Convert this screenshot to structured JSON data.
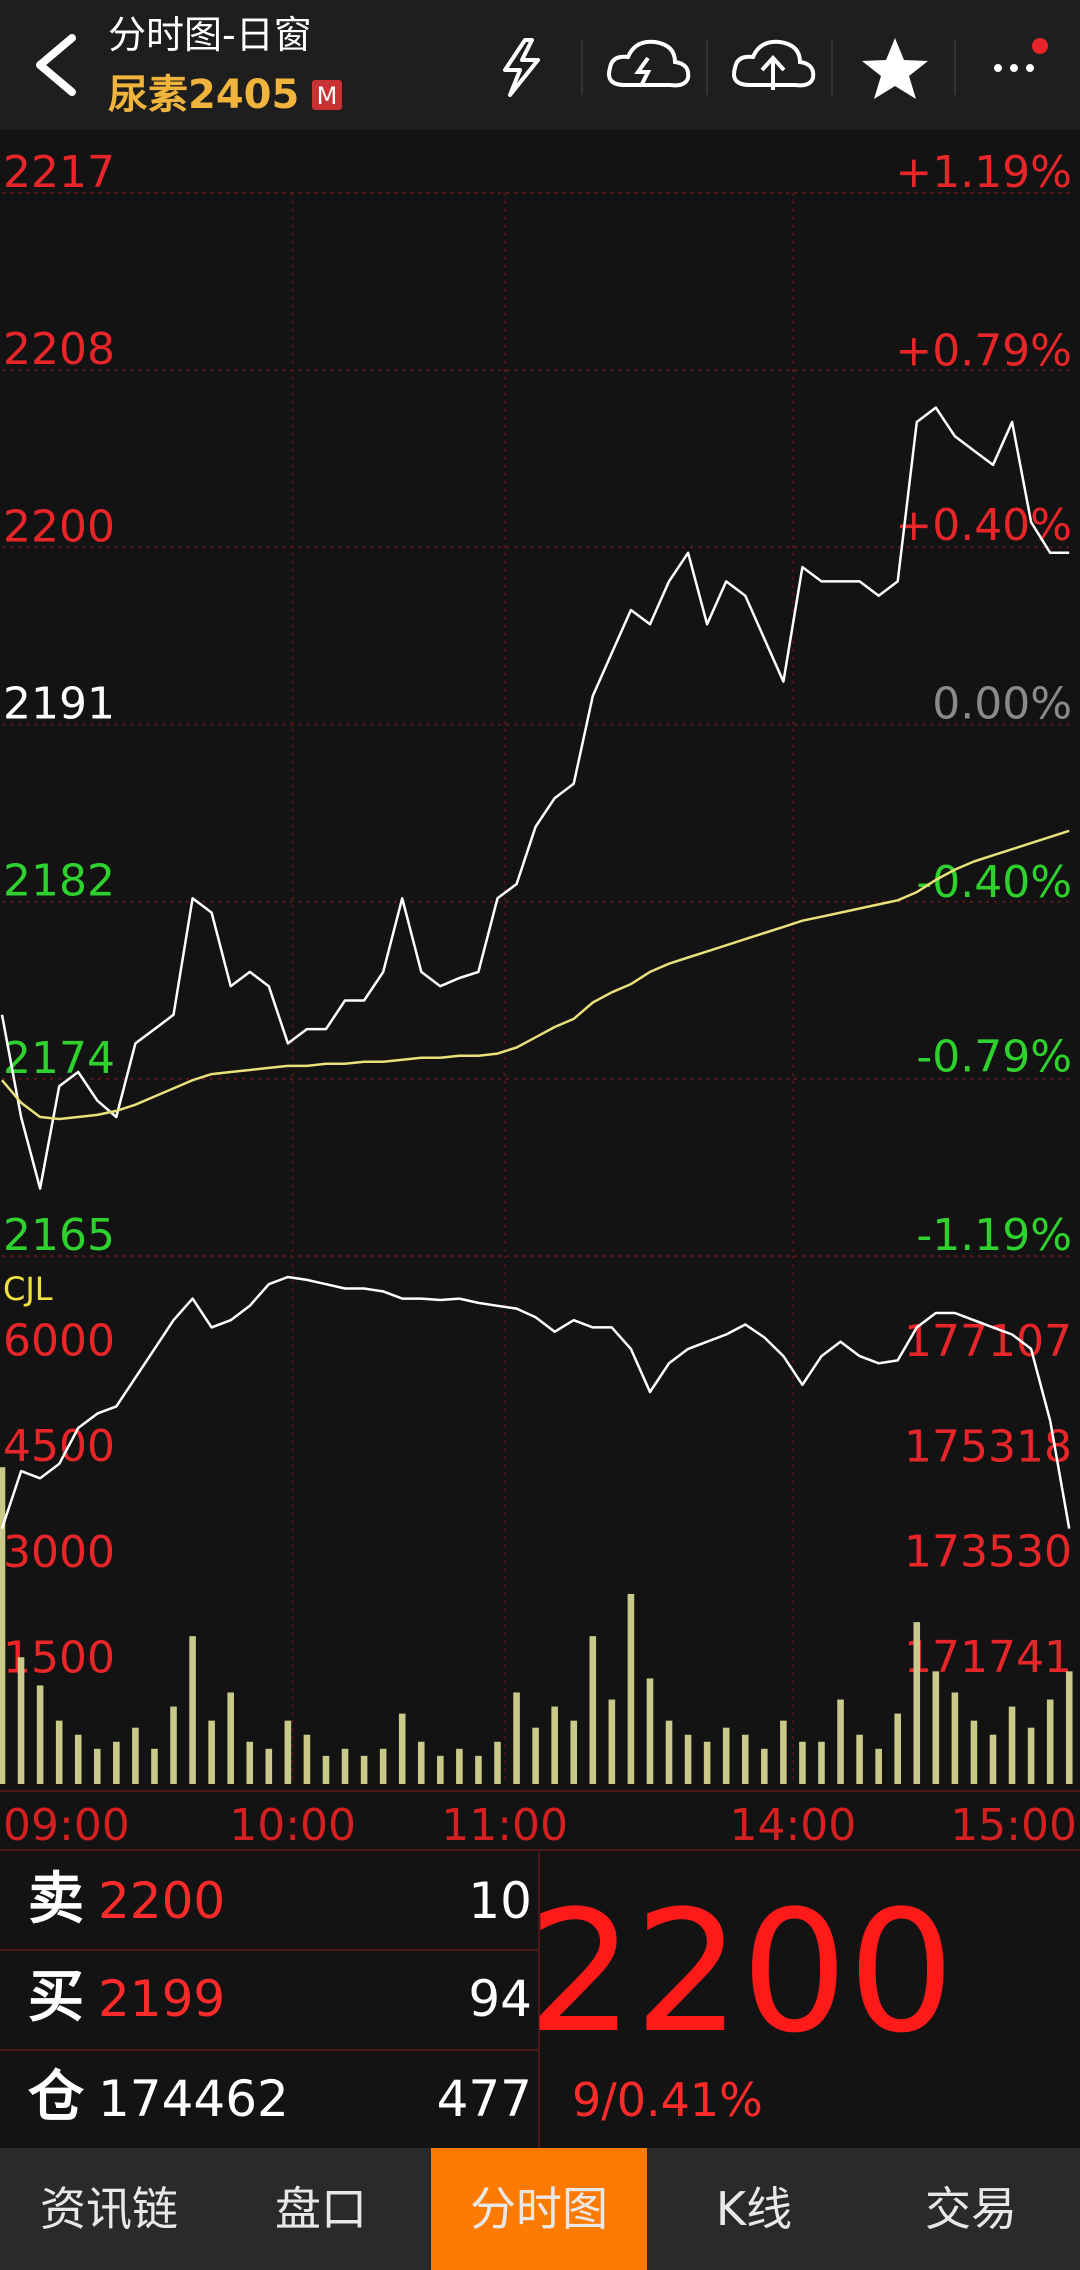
{
  "header": {
    "title": "分时图-日窗",
    "symbol": "尿素2405",
    "badge": "M"
  },
  "chart_data": [
    {
      "type": "line",
      "x": [
        0,
        4,
        8,
        12,
        16,
        20,
        24,
        28,
        32,
        36,
        40,
        44,
        48,
        52,
        56,
        60,
        64,
        68,
        72,
        76,
        80,
        84,
        88,
        92,
        96,
        100,
        104,
        108,
        112,
        116,
        120,
        124,
        128,
        132,
        136,
        140,
        144,
        148,
        152,
        156,
        160,
        164,
        168,
        172,
        176,
        180,
        184,
        188,
        192,
        196,
        200,
        204,
        208,
        212,
        216,
        220,
        224
      ],
      "xlim": [
        0,
        225
      ],
      "series": [
        {
          "color": "#ffffff",
          "values": [
            2176.8,
            2171.8,
            2168.3,
            2173.3,
            2174,
            2172.6,
            2171.8,
            2175.4,
            2176.1,
            2176.8,
            2182.5,
            2181.8,
            2178.2,
            2178.9,
            2178.2,
            2175.4,
            2176.1,
            2176.1,
            2177.5,
            2177.5,
            2178.9,
            2182.5,
            2178.9,
            2178.2,
            2178.6,
            2178.9,
            2182.5,
            2183.2,
            2186,
            2187.4,
            2188.1,
            2192.4,
            2194.5,
            2196.6,
            2195.9,
            2198,
            2199.4,
            2195.9,
            2198,
            2197.3,
            2195.2,
            2193.1,
            2198.7,
            2198,
            2198,
            2198,
            2197.3,
            2198,
            2205.8,
            2206.5,
            2205.1,
            2204.4,
            2203.7,
            2205.8,
            2200.9,
            2199.4,
            2199.4
          ]
        },
        {
          "color": "#e8e07a",
          "values": [
            2173.6,
            2172.5,
            2171.8,
            2171.7,
            2171.8,
            2171.9,
            2172.1,
            2172.4,
            2172.8,
            2173.2,
            2173.6,
            2173.9,
            2174,
            2174.1,
            2174.2,
            2174.3,
            2174.3,
            2174.4,
            2174.4,
            2174.5,
            2174.5,
            2174.6,
            2174.7,
            2174.7,
            2174.8,
            2174.8,
            2174.9,
            2175.2,
            2175.7,
            2176.2,
            2176.6,
            2177.4,
            2177.9,
            2178.3,
            2178.9,
            2179.3,
            2179.6,
            2179.9,
            2180.2,
            2180.5,
            2180.8,
            2181.1,
            2181.4,
            2181.6,
            2181.8,
            2182,
            2182.2,
            2182.4,
            2182.8,
            2183.4,
            2183.9,
            2184.3,
            2184.6,
            2184.9,
            2185.2,
            2185.5,
            2185.8
          ]
        }
      ],
      "ylim": [
        2165,
        2217
      ],
      "yticks": [
        2217,
        {
          "value": 2208.33,
          "label": "2208"
        },
        {
          "value": 2199.67,
          "label": "2200"
        },
        2191,
        {
          "value": 2182.33,
          "label": "2182"
        },
        {
          "value": 2173.67,
          "label": "2174"
        },
        2165
      ],
      "y2lim": [
        -1.19,
        1.19
      ],
      "y2ticks": [
        {
          "value": 1.19,
          "label": "+1.19%"
        },
        {
          "value": 0.79,
          "label": "+0.79%"
        },
        {
          "value": 0.4,
          "label": "+0.40%"
        },
        {
          "value": 0,
          "label": "0.00%"
        },
        {
          "value": -0.4,
          "label": "-0.40%"
        },
        {
          "value": -0.79,
          "label": "-0.79%"
        },
        {
          "value": -1.19,
          "label": "-1.19%"
        }
      ],
      "grid": true
    },
    {
      "type": "combo",
      "label": "CJL",
      "x": [
        0,
        4,
        8,
        12,
        16,
        20,
        24,
        28,
        32,
        36,
        40,
        44,
        48,
        52,
        56,
        60,
        64,
        68,
        72,
        76,
        80,
        84,
        88,
        92,
        96,
        100,
        104,
        108,
        112,
        116,
        120,
        124,
        128,
        132,
        136,
        140,
        144,
        148,
        152,
        156,
        160,
        164,
        168,
        172,
        176,
        180,
        184,
        188,
        192,
        196,
        200,
        204,
        208,
        212,
        216,
        220,
        224
      ],
      "xlim": [
        0,
        225
      ],
      "xticks": [
        {
          "value": 0,
          "label": "09:00"
        },
        {
          "value": 61,
          "label": "10:00"
        },
        {
          "value": 105.5,
          "label": "11:00"
        },
        {
          "value": 166,
          "label": "14:00"
        },
        {
          "value": 225,
          "label": "15:00"
        }
      ],
      "series": [
        {
          "type": "bar",
          "color": "#c9c98a",
          "values": [
            4500,
            1800,
            1400,
            900,
            700,
            500,
            600,
            800,
            500,
            1100,
            2100,
            900,
            1300,
            600,
            500,
            900,
            700,
            400,
            500,
            400,
            500,
            1000,
            600,
            400,
            500,
            400,
            600,
            1300,
            800,
            1100,
            900,
            2100,
            1200,
            2700,
            1500,
            900,
            700,
            600,
            800,
            700,
            500,
            900,
            600,
            600,
            1200,
            700,
            500,
            1000,
            2300,
            1600,
            1300,
            900,
            700,
            1100,
            800,
            1200,
            1600
          ]
        },
        {
          "type": "line",
          "axis": "y2",
          "color": "#ffffff",
          "values": [
            174278,
            175253,
            175131,
            175375,
            175985,
            176229,
            176351,
            176839,
            177327,
            177814,
            178180,
            177692,
            177814,
            178058,
            178424,
            178546,
            178497,
            178424,
            178351,
            178351,
            178302,
            178180,
            178180,
            178156,
            178180,
            178107,
            178058,
            178010,
            177863,
            177619,
            177814,
            177692,
            177692,
            177327,
            176595,
            177083,
            177327,
            177449,
            177571,
            177741,
            177522,
            177205,
            176717,
            177205,
            177449,
            177205,
            177083,
            177131,
            177692,
            177936,
            177936,
            177814,
            177692,
            177571,
            177327,
            176107,
            174278
          ]
        }
      ],
      "ylim": [
        0,
        7500
      ],
      "yticks": [
        6000,
        4500,
        3000,
        1500
      ],
      "y2lim": [
        169945,
        178903
      ],
      "y2ticks": [
        177107,
        175318,
        173530,
        171741
      ],
      "grid": false
    }
  ],
  "quote": {
    "rows": [
      {
        "label": "卖",
        "price": 2200,
        "volume": 10
      },
      {
        "label": "买",
        "price": 2199,
        "volume": 94
      },
      {
        "label": "仓",
        "price": 174462,
        "volume": 477
      }
    ],
    "last": 2200,
    "change": "9/0.41%"
  },
  "tabs": [
    "资讯链",
    "盘口",
    "分时图",
    "K线",
    "交易"
  ],
  "active_tab": 2
}
